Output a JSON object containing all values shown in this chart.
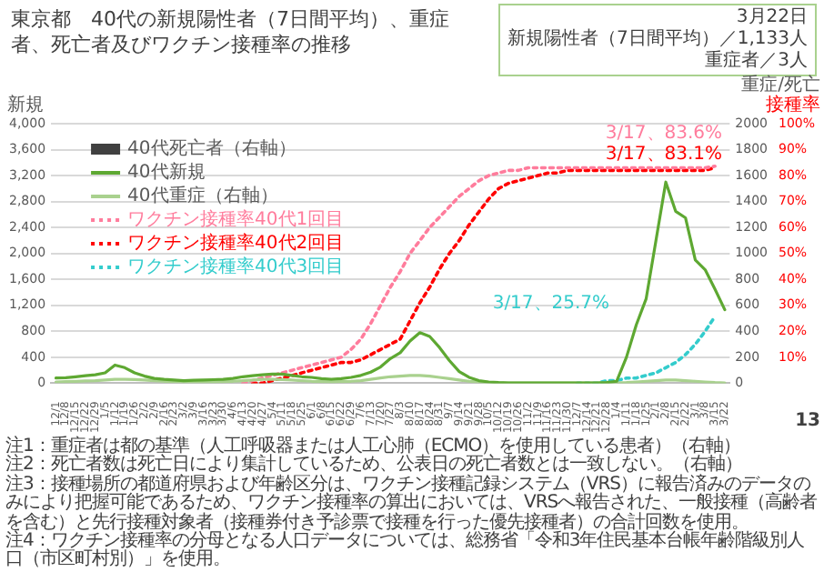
{
  "chart_data": {
    "type": "line",
    "title": "東京都　40代の新規陽性者（7日間平均）、重症者、死亡者及びワクチン接種率の推移",
    "ylabel": "新規",
    "y2label": "重症/死亡",
    "y3label": "接種率",
    "categories": [
      "12/1",
      "12/8",
      "12/15",
      "12/22",
      "12/29",
      "1/5",
      "1/12",
      "1/19",
      "1/26",
      "2/2",
      "2/9",
      "2/16",
      "2/23",
      "3/2",
      "3/9",
      "3/16",
      "3/23",
      "3/30",
      "4/6",
      "4/13",
      "4/20",
      "4/27",
      "5/4",
      "5/11",
      "5/18",
      "5/25",
      "6/1",
      "6/8",
      "6/15",
      "6/22",
      "6/29",
      "7/6",
      "7/13",
      "7/20",
      "7/27",
      "8/3",
      "8/10",
      "8/17",
      "8/24",
      "8/31",
      "9/7",
      "9/14",
      "9/21",
      "9/28",
      "10/5",
      "10/12",
      "10/19",
      "10/26",
      "11/2",
      "11/9",
      "11/16",
      "11/23",
      "11/30",
      "12/7",
      "12/14",
      "12/21",
      "12/28",
      "1/4",
      "1/11",
      "1/18",
      "1/25",
      "2/1",
      "2/8",
      "2/15",
      "2/22",
      "3/1",
      "3/8",
      "3/15",
      "3/22"
    ],
    "series": [
      {
        "name": "40代死亡者（右軸）",
        "type": "bar",
        "axis": "y2",
        "color": "#404040",
        "values": [
          0,
          0,
          0,
          0,
          0,
          0,
          0,
          0,
          0,
          0,
          0,
          0,
          0,
          0,
          0,
          0,
          0,
          0,
          0,
          0,
          0,
          0,
          0,
          0,
          0,
          0,
          0,
          0,
          0,
          0,
          0,
          0,
          0,
          0,
          0,
          0,
          0,
          0,
          0,
          0,
          0,
          0,
          0,
          0,
          0,
          0,
          0,
          0,
          0,
          0,
          0,
          0,
          0,
          0,
          0,
          0,
          0,
          0,
          0,
          0,
          0,
          0,
          0,
          0,
          0,
          0,
          0,
          0,
          0
        ]
      },
      {
        "name": "40代新規",
        "color": "#5ea832",
        "values": [
          80,
          85,
          100,
          115,
          130,
          160,
          280,
          240,
          160,
          110,
          75,
          60,
          50,
          40,
          45,
          50,
          55,
          60,
          75,
          100,
          115,
          130,
          140,
          140,
          120,
          100,
          90,
          70,
          60,
          70,
          90,
          120,
          170,
          250,
          380,
          470,
          650,
          780,
          720,
          550,
          350,
          180,
          90,
          40,
          20,
          10,
          5,
          5,
          5,
          5,
          5,
          5,
          5,
          5,
          5,
          5,
          10,
          30,
          400,
          900,
          1300,
          2200,
          3100,
          2650,
          2550,
          1900,
          1750,
          1450,
          1133
        ]
      },
      {
        "name": "40代重症（右軸）",
        "axis": "y2",
        "color": "#a9d18e",
        "values": [
          10,
          12,
          15,
          18,
          20,
          25,
          30,
          30,
          28,
          25,
          20,
          15,
          12,
          10,
          10,
          10,
          10,
          12,
          15,
          20,
          25,
          30,
          30,
          28,
          25,
          20,
          15,
          12,
          10,
          12,
          15,
          20,
          30,
          40,
          50,
          55,
          60,
          60,
          55,
          45,
          35,
          25,
          15,
          10,
          5,
          3,
          2,
          2,
          2,
          2,
          2,
          2,
          2,
          2,
          2,
          2,
          2,
          3,
          5,
          10,
          15,
          20,
          25,
          25,
          20,
          15,
          10,
          5,
          3
        ]
      },
      {
        "name": "ワクチン接種率40代1回目",
        "axis": "y3",
        "line_style": "dotted",
        "color": "#ff7c9c",
        "values": [
          null,
          null,
          null,
          null,
          null,
          null,
          null,
          null,
          null,
          null,
          null,
          null,
          null,
          null,
          null,
          null,
          null,
          null,
          null,
          0,
          1,
          2,
          3,
          4,
          5,
          6,
          7,
          8,
          9,
          10,
          13,
          17,
          23,
          30,
          37,
          43,
          50,
          55,
          60,
          64,
          68,
          72,
          75,
          78,
          80,
          81,
          82,
          82,
          83,
          83,
          83,
          83,
          83,
          83,
          83,
          83,
          83,
          83,
          83,
          83,
          83,
          83,
          83,
          83,
          83,
          83,
          83,
          83.6,
          null
        ]
      },
      {
        "name": "ワクチン接種率40代2回目",
        "axis": "y3",
        "line_style": "dotted",
        "color": "#ff0000",
        "values": [
          null,
          null,
          null,
          null,
          null,
          null,
          null,
          null,
          null,
          null,
          null,
          null,
          null,
          null,
          null,
          null,
          null,
          null,
          null,
          null,
          0,
          0,
          1,
          2,
          3,
          4,
          5,
          6,
          7,
          8,
          8,
          9,
          11,
          13,
          15,
          17,
          24,
          31,
          37,
          44,
          50,
          55,
          61,
          66,
          71,
          75,
          77,
          78,
          79,
          80,
          81,
          81,
          82,
          82,
          82,
          82,
          82,
          82,
          82,
          82,
          82,
          82,
          82,
          82,
          82,
          82,
          82,
          83.1,
          null
        ]
      },
      {
        "name": "ワクチン接種率40代3回目",
        "axis": "y3",
        "line_style": "dotted",
        "color": "#33cccc",
        "values": [
          null,
          null,
          null,
          null,
          null,
          null,
          null,
          null,
          null,
          null,
          null,
          null,
          null,
          null,
          null,
          null,
          null,
          null,
          null,
          null,
          null,
          null,
          null,
          null,
          null,
          null,
          null,
          null,
          null,
          null,
          null,
          null,
          null,
          null,
          null,
          null,
          null,
          null,
          null,
          null,
          null,
          null,
          null,
          null,
          null,
          null,
          null,
          null,
          null,
          null,
          null,
          null,
          null,
          0,
          0,
          0,
          1,
          1,
          2,
          2,
          3,
          4,
          6,
          8,
          11,
          15,
          20,
          25.7,
          null
        ]
      }
    ],
    "ylim": [
      0,
      4000
    ],
    "yticks": [
      0,
      400,
      800,
      {
        "value": 1200,
        "label": "1,200"
      },
      {
        "value": 1600,
        "label": "1,600"
      },
      {
        "value": 2000,
        "label": "2,000"
      },
      {
        "value": 2400,
        "label": "2,400"
      },
      {
        "value": 2800,
        "label": "2,800"
      },
      {
        "value": 3200,
        "label": "3,200"
      },
      {
        "value": 3600,
        "label": "3,600"
      },
      {
        "value": 4000,
        "label": "4,000"
      }
    ],
    "y2lim": [
      0,
      2000
    ],
    "y2ticks": [
      0,
      200,
      400,
      600,
      800,
      1000,
      1200,
      1400,
      1600,
      1800,
      2000
    ],
    "y3lim": [
      0,
      100
    ],
    "y3ticks": [
      {
        "value": 10,
        "label": "10%"
      },
      {
        "value": 20,
        "label": "20%"
      },
      {
        "value": 30,
        "label": "30%"
      },
      {
        "value": 40,
        "label": "40%"
      },
      {
        "value": 50,
        "label": "50%"
      },
      {
        "value": 60,
        "label": "60%"
      },
      {
        "value": 70,
        "label": "70%"
      },
      {
        "value": 80,
        "label": "80%"
      },
      {
        "value": 90,
        "label": "90%"
      },
      {
        "value": 100,
        "label": "100%"
      }
    ],
    "grid": "y",
    "legend": "top left",
    "marker": "none",
    "annotations": [
      "3/17、83.6%",
      "3/17、83.1%",
      "3/17、25.7%",
      "注1：重症者は都の基準（人工呼吸器または人工心肺（ECMO）を使用している患者）（右軸）",
      "注2：死亡者数は死亡日により集計しているため、公表日の死亡者数とは一致しない。（右軸）",
      "注3：接種場所の都道府県および年齢区分は、ワクチン接種記録システム（VRS）に報告済みのデータのみにより把握可能であるため、ワクチン接種率の算出においては、VRSへ報告された、一般接種（高齢者を含む）と先行接種対象者（接種券付き予診票で接種を行った優先接種者）の合計回数を使用。",
      "注4：ワクチン接種率の分母となる人口データについては、総務省「令和3年住民基本台帳年齢階級別人口（市区町村別）」を使用。",
      "3月22日",
      "新規陽性者（7日間平均）／1,133人",
      "重症者／3人",
      "13"
    ]
  }
}
